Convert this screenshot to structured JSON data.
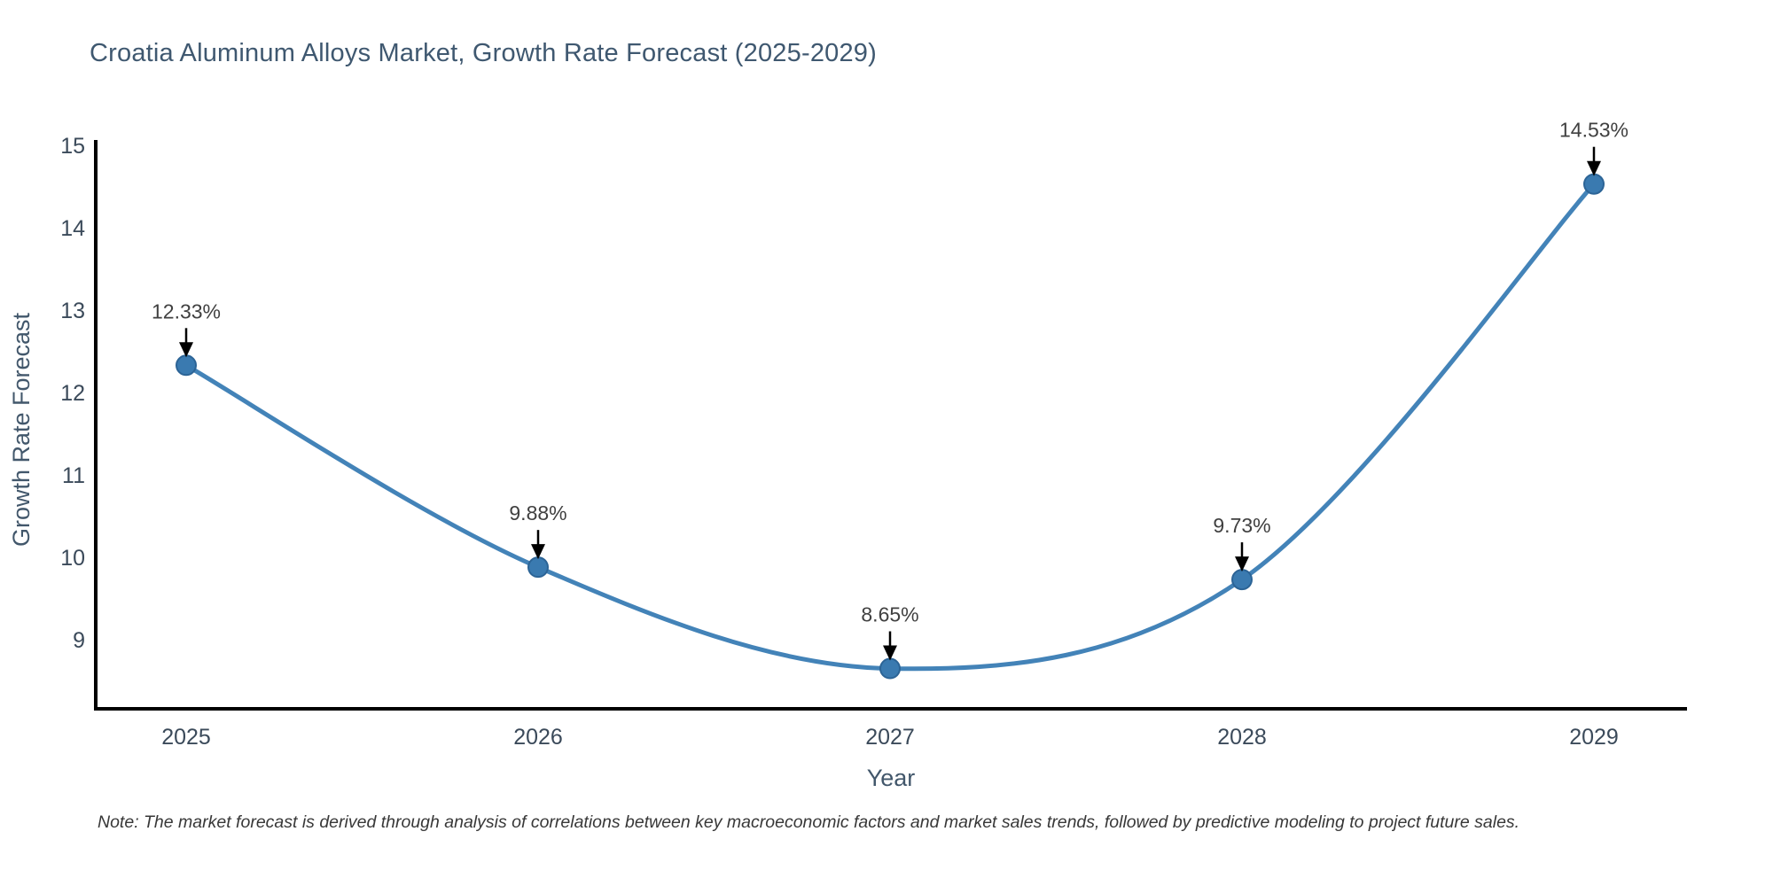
{
  "title": "Croatia Aluminum Alloys Market, Growth Rate Forecast (2025-2029)",
  "note": "Note: The market forecast is derived through analysis of correlations between key macroeconomic factors and market sales trends, followed by predictive modeling to project future sales.",
  "chart_data": {
    "type": "line",
    "title": "Croatia Aluminum Alloys Market, Growth Rate Forecast (2025-2029)",
    "xlabel": "Year",
    "ylabel": "Growth Rate Forecast",
    "x": [
      2025,
      2026,
      2027,
      2028,
      2029
    ],
    "x_tick_labels": [
      "2025",
      "2026",
      "2027",
      "2028",
      "2029"
    ],
    "y": [
      12.33,
      9.88,
      8.65,
      9.73,
      14.53
    ],
    "point_labels": [
      "12.33%",
      "9.88%",
      "8.65%",
      "9.73%",
      "14.53%"
    ],
    "y_ticks": [
      9,
      10,
      11,
      12,
      13,
      14,
      15
    ],
    "ylim": [
      8.16,
      15.05
    ],
    "xlim": [
      2024.74,
      2029.27
    ],
    "line_shape": "spline",
    "markers": true,
    "grid": false,
    "legend": false,
    "annotation_arrows": true,
    "colors": {
      "line": "#4383b8",
      "marker_fill": "#3a7ab0",
      "marker_edge": "#2c6496",
      "axis_line": "#000000",
      "tick_label": "#3b4a5a",
      "axis_title": "#42576b",
      "annotation_text": "#404040",
      "annotation_arrow": "#000000",
      "title_text": "#3f5870",
      "background": "#ffffff"
    }
  }
}
